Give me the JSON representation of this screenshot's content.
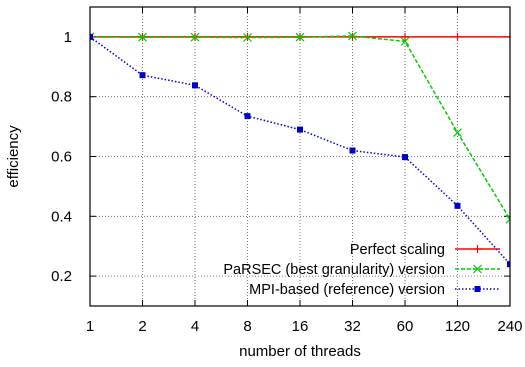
{
  "chart_data": {
    "type": "line",
    "title": "",
    "xlabel": "number of threads",
    "ylabel": "efficiency",
    "categories": [
      "1",
      "2",
      "4",
      "8",
      "16",
      "32",
      "60",
      "120",
      "240"
    ],
    "ylim": [
      0.1,
      1.1
    ],
    "yticks": [
      "0.2",
      "0.4",
      "0.6",
      "0.8",
      "1"
    ],
    "grid": true,
    "legend_position": "bottom-right",
    "series": [
      {
        "name": "Perfect scaling",
        "color": "#ff0000",
        "marker": "plus",
        "values": [
          1,
          1,
          1,
          1,
          1,
          1,
          1,
          1,
          1
        ]
      },
      {
        "name": "PaRSEC (best granularity) version",
        "color": "#00cc00",
        "marker": "cross",
        "values": [
          1.0,
          0.999,
          0.999,
          0.998,
          0.999,
          1.003,
          0.985,
          0.68,
          0.39
        ]
      },
      {
        "name": "MPI-based (reference) version",
        "color": "#0000cc",
        "marker": "square",
        "values": [
          1.0,
          0.872,
          0.838,
          0.735,
          0.69,
          0.62,
          0.598,
          0.435,
          0.24
        ]
      }
    ]
  }
}
